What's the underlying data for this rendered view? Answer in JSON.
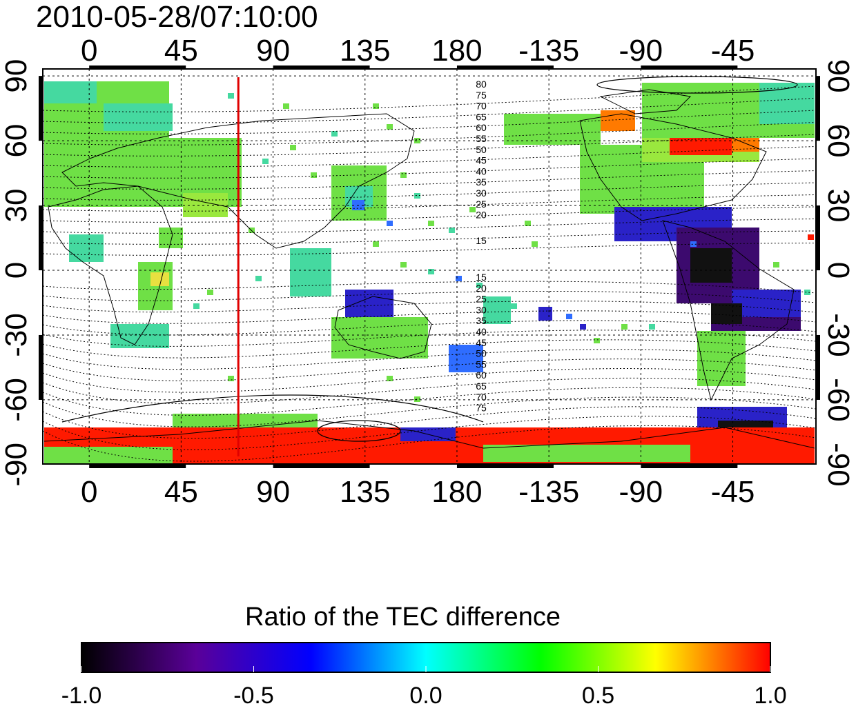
{
  "header": {
    "timestamp": "2010-05-28/07:10:00"
  },
  "map": {
    "lon_ticks": [
      "0",
      "45",
      "90",
      "135",
      "180",
      "-135",
      "-90",
      "-45"
    ],
    "lat_ticks": [
      "90",
      "60",
      "30",
      "0",
      "-30",
      "-60",
      "-90"
    ],
    "lon_values": [
      0,
      45,
      90,
      135,
      180,
      -135,
      -90,
      -45
    ],
    "lat_values": [
      90,
      60,
      30,
      0,
      -30,
      -60,
      -90
    ],
    "marker_longitude": 73,
    "contour_labels_north": [
      "80",
      "75",
      "70",
      "65",
      "60",
      "55",
      "50",
      "45",
      "40",
      "35",
      "30",
      "25",
      "20",
      "15"
    ],
    "contour_labels_south": [
      "15",
      "20",
      "25",
      "30",
      "35",
      "40",
      "45",
      "50",
      "55",
      "60",
      "65",
      "70",
      "75"
    ],
    "colors": {
      "marker": "#e00000",
      "frame": "#000000",
      "grid": "#000000"
    }
  },
  "colorbar": {
    "title": "Ratio of the TEC difference",
    "range": [
      -1.0,
      1.0
    ],
    "tick_labels": [
      "-1.0",
      "-0.5",
      "0.0",
      "0.5",
      "1.0"
    ],
    "stops": [
      "#000000",
      "#5a0099",
      "#0000ff",
      "#00ffff",
      "#00ff00",
      "#ffff00",
      "#ff0000"
    ]
  }
}
